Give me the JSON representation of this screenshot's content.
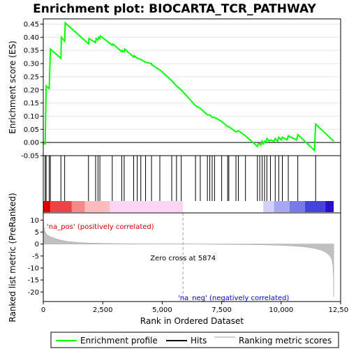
{
  "chart_data": {
    "type": "line",
    "title": "Enrichment plot: BIOCARTA_TCR_PATHWAY",
    "x_range": [
      0,
      12500
    ],
    "n_genes": 12210,
    "top": {
      "ylabel": "Enrichment score (ES)",
      "ylim": [
        -0.05,
        0.47
      ],
      "yticks": [
        "-0.05",
        "0.00",
        "0.05",
        "0.10",
        "0.15",
        "0.20",
        "0.25",
        "0.30",
        "0.35",
        "0.40",
        "0.45"
      ],
      "ytick_values": [
        -0.05,
        0,
        0.05,
        0.1,
        0.15,
        0.2,
        0.25,
        0.3,
        0.35,
        0.4,
        0.45
      ],
      "grid": true,
      "series": [
        {
          "name": "Enrichment profile",
          "color": "#00ff00",
          "x": [
            0,
            80,
            120,
            250,
            300,
            740,
            760,
            900,
            920,
            1900,
            1920,
            2200,
            2220,
            2300,
            2320,
            2380,
            2400,
            2900,
            2920,
            3300,
            3320,
            3400,
            3420,
            3800,
            3820,
            3950,
            3970,
            4100,
            4120,
            4300,
            4320,
            4550,
            4570,
            4900,
            4920,
            5400,
            5600,
            5800,
            6400,
            6600,
            6900,
            7000,
            7100,
            7200,
            7500,
            7750,
            7800,
            8100,
            8200,
            8500,
            9000,
            9050,
            9100,
            9150,
            9200,
            9250,
            9300,
            9350,
            9400,
            9500,
            9550,
            9700,
            9750,
            9850,
            9900,
            10000,
            10050,
            10250,
            10300,
            10650,
            10700,
            11400,
            11450,
            12210
          ],
          "y": [
            -0.005,
            -0.005,
            0.215,
            0.205,
            0.355,
            0.32,
            0.4,
            0.385,
            0.455,
            0.375,
            0.395,
            0.38,
            0.395,
            0.39,
            0.4,
            0.395,
            0.405,
            0.37,
            0.375,
            0.345,
            0.35,
            0.345,
            0.355,
            0.325,
            0.33,
            0.32,
            0.32,
            0.315,
            0.315,
            0.305,
            0.305,
            0.3,
            0.295,
            0.275,
            0.275,
            0.235,
            0.215,
            0.2,
            0.14,
            0.13,
            0.105,
            0.105,
            0.095,
            0.095,
            0.08,
            0.06,
            0.06,
            0.04,
            0.045,
            0.025,
            -0.015,
            -0.005,
            -0.005,
            -0.01,
            0.005,
            -0.005,
            0.005,
            0.0,
            0.015,
            0.005,
            0.01,
            0.005,
            0.015,
            0.005,
            0.02,
            0.01,
            0.02,
            0.01,
            0.025,
            0.01,
            0.03,
            -0.03,
            0.07,
            0.005
          ]
        }
      ]
    },
    "hits": {
      "name": "Hits",
      "positions": [
        80,
        120,
        250,
        300,
        740,
        900,
        1900,
        2200,
        2300,
        2380,
        2900,
        3300,
        3400,
        3800,
        3950,
        4100,
        4300,
        4550,
        4900,
        5400,
        5600,
        5800,
        6400,
        6600,
        6900,
        7000,
        7100,
        7200,
        7500,
        7750,
        7800,
        8100,
        8200,
        8500,
        9000,
        9100,
        9200,
        9300,
        9400,
        9550,
        9750,
        9900,
        10050,
        10300,
        10700,
        11450
      ],
      "heat_colors": [
        "#e00000",
        "#ec4444",
        "#f58888",
        "#fabcbc",
        "#fcd4f4",
        "#ffffff",
        "#d0d0f8",
        "#a8a8f2",
        "#7878ea",
        "#4444dc",
        "#2a10c8",
        "#4c00aa"
      ],
      "heat_breaks": [
        0,
        300,
        1200,
        1750,
        2800,
        5874,
        9250,
        9700,
        10350,
        11000,
        11850,
        12210
      ]
    },
    "bottom": {
      "ylabel": "Ranked list metric (PreRanked)",
      "ylim": [
        -24,
        13
      ],
      "yticks": [
        "10",
        "5",
        "0",
        "-5",
        "-10",
        "-15",
        "-20"
      ],
      "ytick_values": [
        10,
        5,
        0,
        -5,
        -10,
        -15,
        -20
      ],
      "xlabel": "Rank in Ordered Dataset",
      "xticks": [
        "0",
        "2,500",
        "5,000",
        "7,500",
        "10,000",
        "12,500"
      ],
      "xtick_values": [
        0,
        2500,
        5000,
        7500,
        10000,
        12500
      ],
      "series": [
        {
          "name": "Ranking metric scores",
          "color": "#c0c0c0",
          "x": [
            0,
            20,
            60,
            120,
            200,
            300,
            450,
            600,
            800,
            1000,
            1300,
            1600,
            2000,
            2500,
            3000,
            3500,
            4000,
            4500,
            5000,
            5500,
            5874,
            6500,
            7000,
            8000,
            9000,
            9500,
            10000,
            10500,
            11000,
            11400,
            11700,
            11900,
            12000,
            12100,
            12150,
            12180,
            12200,
            12210
          ],
          "y": [
            12,
            7.5,
            5.5,
            4.3,
            3.6,
            3.0,
            2.5,
            2.0,
            1.5,
            1.1,
            0.8,
            0.55,
            0.38,
            0.25,
            0.17,
            0.11,
            0.07,
            0.04,
            0.02,
            0.01,
            0,
            -0.05,
            -0.1,
            -0.18,
            -0.28,
            -0.4,
            -0.55,
            -0.8,
            -1.2,
            -1.8,
            -2.6,
            -3.6,
            -4.4,
            -5.8,
            -7.2,
            -9.5,
            -14,
            -22
          ]
        }
      ],
      "zero_cross_label": "Zero cross at 5874",
      "zero_cross": 5874,
      "pos_label": "'na_pos' (positively correlated)",
      "neg_label": "'na_neg' (negatively correlated)"
    },
    "legend": {
      "placement": "bottom",
      "entries": [
        {
          "label": "Enrichment profile",
          "color": "#00ff00"
        },
        {
          "label": "Hits",
          "color": "#000000"
        },
        {
          "label": "Ranking metric scores",
          "color": "#c0c0c0"
        }
      ]
    }
  }
}
